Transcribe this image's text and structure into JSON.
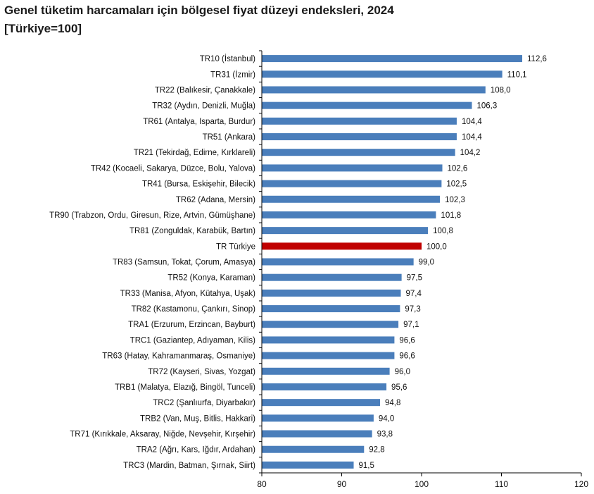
{
  "chart_data": {
    "type": "bar",
    "orientation": "horizontal",
    "title": "Genel tüketim harcamaları için bölgesel fiyat düzeyi endeksleri, 2024",
    "subtitle": "[Türkiye=100]",
    "xlabel": "",
    "ylabel": "",
    "xlim": [
      80,
      120
    ],
    "xticks": [
      80,
      90,
      100,
      110,
      120
    ],
    "grid": false,
    "colors": {
      "default": "#4a7ebb",
      "highlight": "#c00000"
    },
    "highlight_category": "TR Türkiye",
    "categories": [
      "TR10 (İstanbul)",
      "TR31 (İzmir)",
      "TR22 (Balıkesir, Çanakkale)",
      "TR32 (Aydın, Denizli, Muğla)",
      "TR61 (Antalya, Isparta, Burdur)",
      "TR51 (Ankara)",
      "TR21 (Tekirdağ, Edirne, Kırklareli)",
      "TR42 (Kocaeli, Sakarya, Düzce, Bolu, Yalova)",
      "TR41 (Bursa, Eskişehir, Bilecik)",
      "TR62 (Adana, Mersin)",
      "TR90 (Trabzon, Ordu, Giresun, Rize, Artvin, Gümüşhane)",
      "TR81 (Zonguldak, Karabük, Bartın)",
      "TR Türkiye",
      "TR83 (Samsun, Tokat, Çorum, Amasya)",
      "TR52 (Konya, Karaman)",
      "TR33 (Manisa, Afyon, Kütahya, Uşak)",
      "TR82 (Kastamonu, Çankırı, Sinop)",
      "TRA1 (Erzurum, Erzincan, Bayburt)",
      "TRC1 (Gaziantep, Adıyaman, Kilis)",
      "TR63 (Hatay, Kahramanmaraş, Osmaniye)",
      "TR72 (Kayseri, Sivas, Yozgat)",
      "TRB1 (Malatya, Elazığ, Bingöl, Tunceli)",
      "TRC2 (Şanlıurfa, Diyarbakır)",
      "TRB2 (Van, Muş, Bitlis, Hakkari)",
      "TR71 (Kırıkkale, Aksaray, Niğde, Nevşehir, Kırşehir)",
      "TRA2 (Ağrı, Kars, Iğdır, Ardahan)",
      "TRC3 (Mardin, Batman, Şırnak, Siirt)"
    ],
    "values": [
      112.6,
      110.1,
      108.0,
      106.3,
      104.4,
      104.4,
      104.2,
      102.6,
      102.5,
      102.3,
      101.8,
      100.8,
      100.0,
      99.0,
      97.5,
      97.4,
      97.3,
      97.1,
      96.6,
      96.6,
      96.0,
      95.6,
      94.8,
      94.0,
      93.8,
      92.8,
      91.5
    ],
    "value_labels": [
      "112,6",
      "110,1",
      "108,0",
      "106,3",
      "104,4",
      "104,4",
      "104,2",
      "102,6",
      "102,5",
      "102,3",
      "101,8",
      "100,8",
      "100,0",
      "99,0",
      "97,5",
      "97,4",
      "97,3",
      "97,1",
      "96,6",
      "96,6",
      "96,0",
      "95,6",
      "94,8",
      "94,0",
      "93,8",
      "92,8",
      "91,5"
    ]
  }
}
